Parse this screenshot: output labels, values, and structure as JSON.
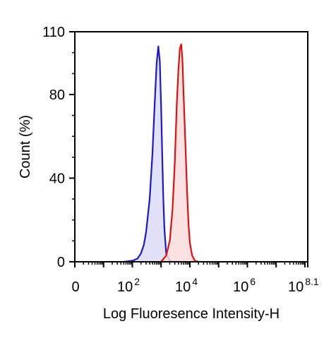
{
  "chart_data": {
    "type": "area",
    "title": "",
    "xlabel": "Log Fluoresence Intensity-H",
    "ylabel": "Count  (%)",
    "x_scale": "log10",
    "xlim": [
      1,
      125892541
    ],
    "ylim": [
      0,
      110
    ],
    "grid": false,
    "x_ticks": [
      {
        "base": "0",
        "exp": ""
      },
      {
        "base": "10",
        "exp": "2"
      },
      {
        "base": "10",
        "exp": "4"
      },
      {
        "base": "10",
        "exp": "6"
      },
      {
        "base": "10",
        "exp": "8.1"
      }
    ],
    "y_ticks": [
      "0",
      "40",
      "80",
      "110"
    ],
    "y_tick_values": [
      0,
      40,
      80,
      110
    ],
    "series": [
      {
        "color": "#1a1acc",
        "fill": "#dcdcf7",
        "x": [
          50,
          100,
          150,
          200,
          250,
          300,
          400,
          500,
          600,
          700,
          800,
          900,
          1000,
          1100,
          1200,
          1300,
          1500,
          2000,
          3000
        ],
        "y": [
          0,
          0.5,
          1.5,
          4,
          8,
          14,
          30,
          52,
          76,
          95,
          103,
          96,
          75,
          50,
          30,
          16,
          4,
          0.5,
          0
        ]
      },
      {
        "color": "#dd1111",
        "fill": "#fadcdc",
        "x": [
          1000,
          1500,
          2000,
          2500,
          3000,
          3500,
          4000,
          4500,
          5000,
          5500,
          6000,
          7000,
          8000,
          9000,
          10000,
          12000,
          15000,
          20000
        ],
        "y": [
          0,
          3,
          10,
          25,
          48,
          75,
          92,
          102,
          104,
          97,
          82,
          56,
          34,
          18,
          9,
          3,
          0.5,
          0
        ]
      }
    ]
  }
}
